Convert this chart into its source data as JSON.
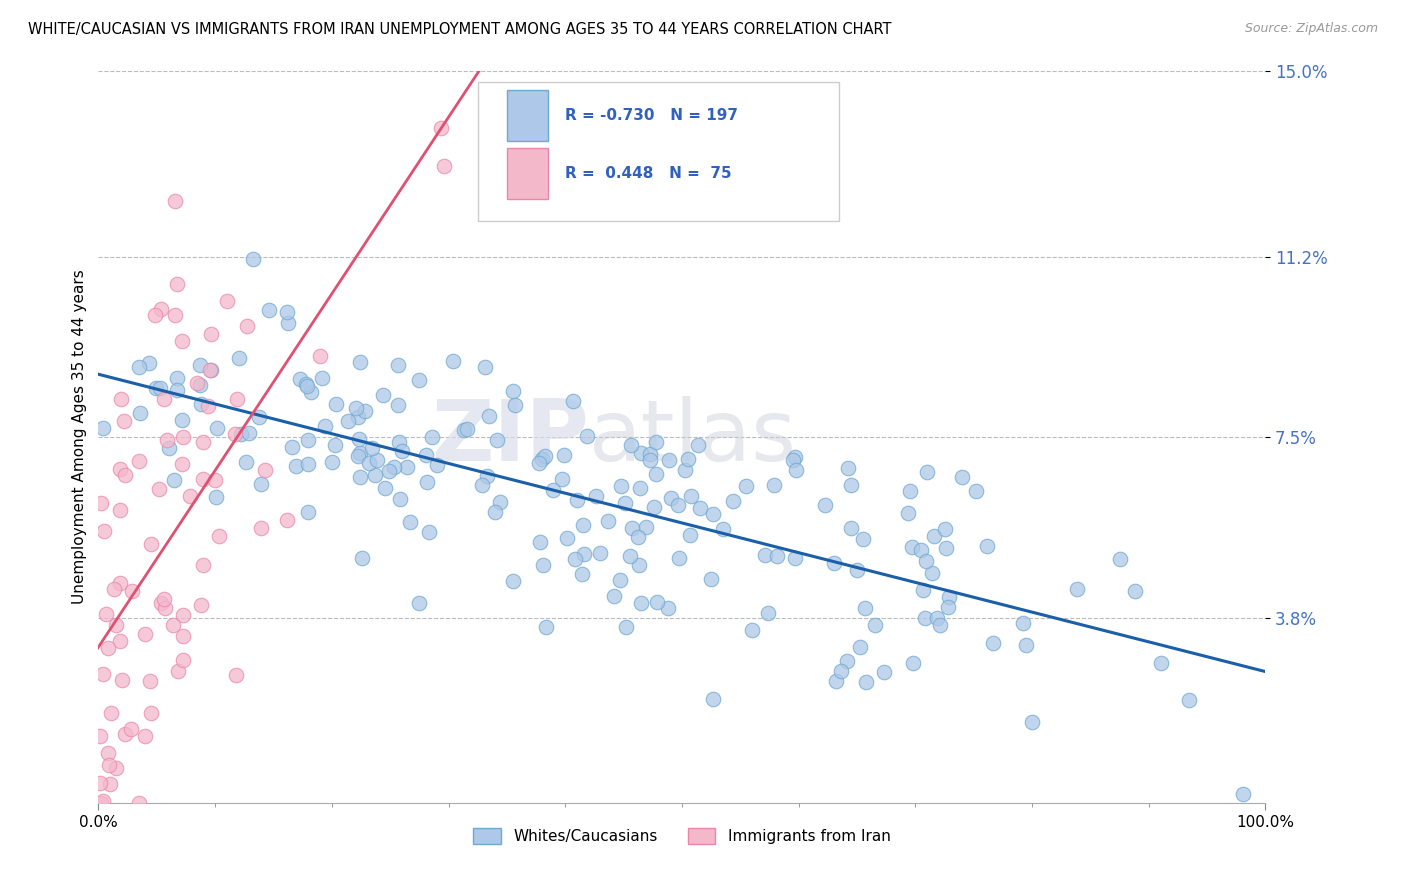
{
  "title": "WHITE/CAUCASIAN VS IMMIGRANTS FROM IRAN UNEMPLOYMENT AMONG AGES 35 TO 44 YEARS CORRELATION CHART",
  "source": "Source: ZipAtlas.com",
  "ylabel": "Unemployment Among Ages 35 to 44 years",
  "xlim": [
    0,
    1.0
  ],
  "ylim": [
    0,
    0.15
  ],
  "ytick_positions": [
    0.038,
    0.075,
    0.112,
    0.15
  ],
  "ytick_labels": [
    "3.8%",
    "7.5%",
    "11.2%",
    "15.0%"
  ],
  "xtick_positions": [
    0.0,
    1.0
  ],
  "xtick_labels": [
    "0.0%",
    "100.0%"
  ],
  "blue_R": "-0.730",
  "blue_N": "197",
  "pink_R": "0.448",
  "pink_N": "75",
  "blue_dot_face": "#adc8e8",
  "blue_dot_edge": "#6fa8d0",
  "pink_dot_face": "#f4b8cb",
  "pink_dot_edge": "#e888a8",
  "trend_blue_color": "#1a5fa8",
  "trend_pink_color": "#e05070",
  "legend_label_blue": "Whites/Caucasians",
  "legend_label_pink": "Immigrants from Iran",
  "watermark_zip": "ZIP",
  "watermark_atlas": "atlas",
  "background_color": "#ffffff",
  "title_fontsize": 10.5,
  "seed": 7
}
